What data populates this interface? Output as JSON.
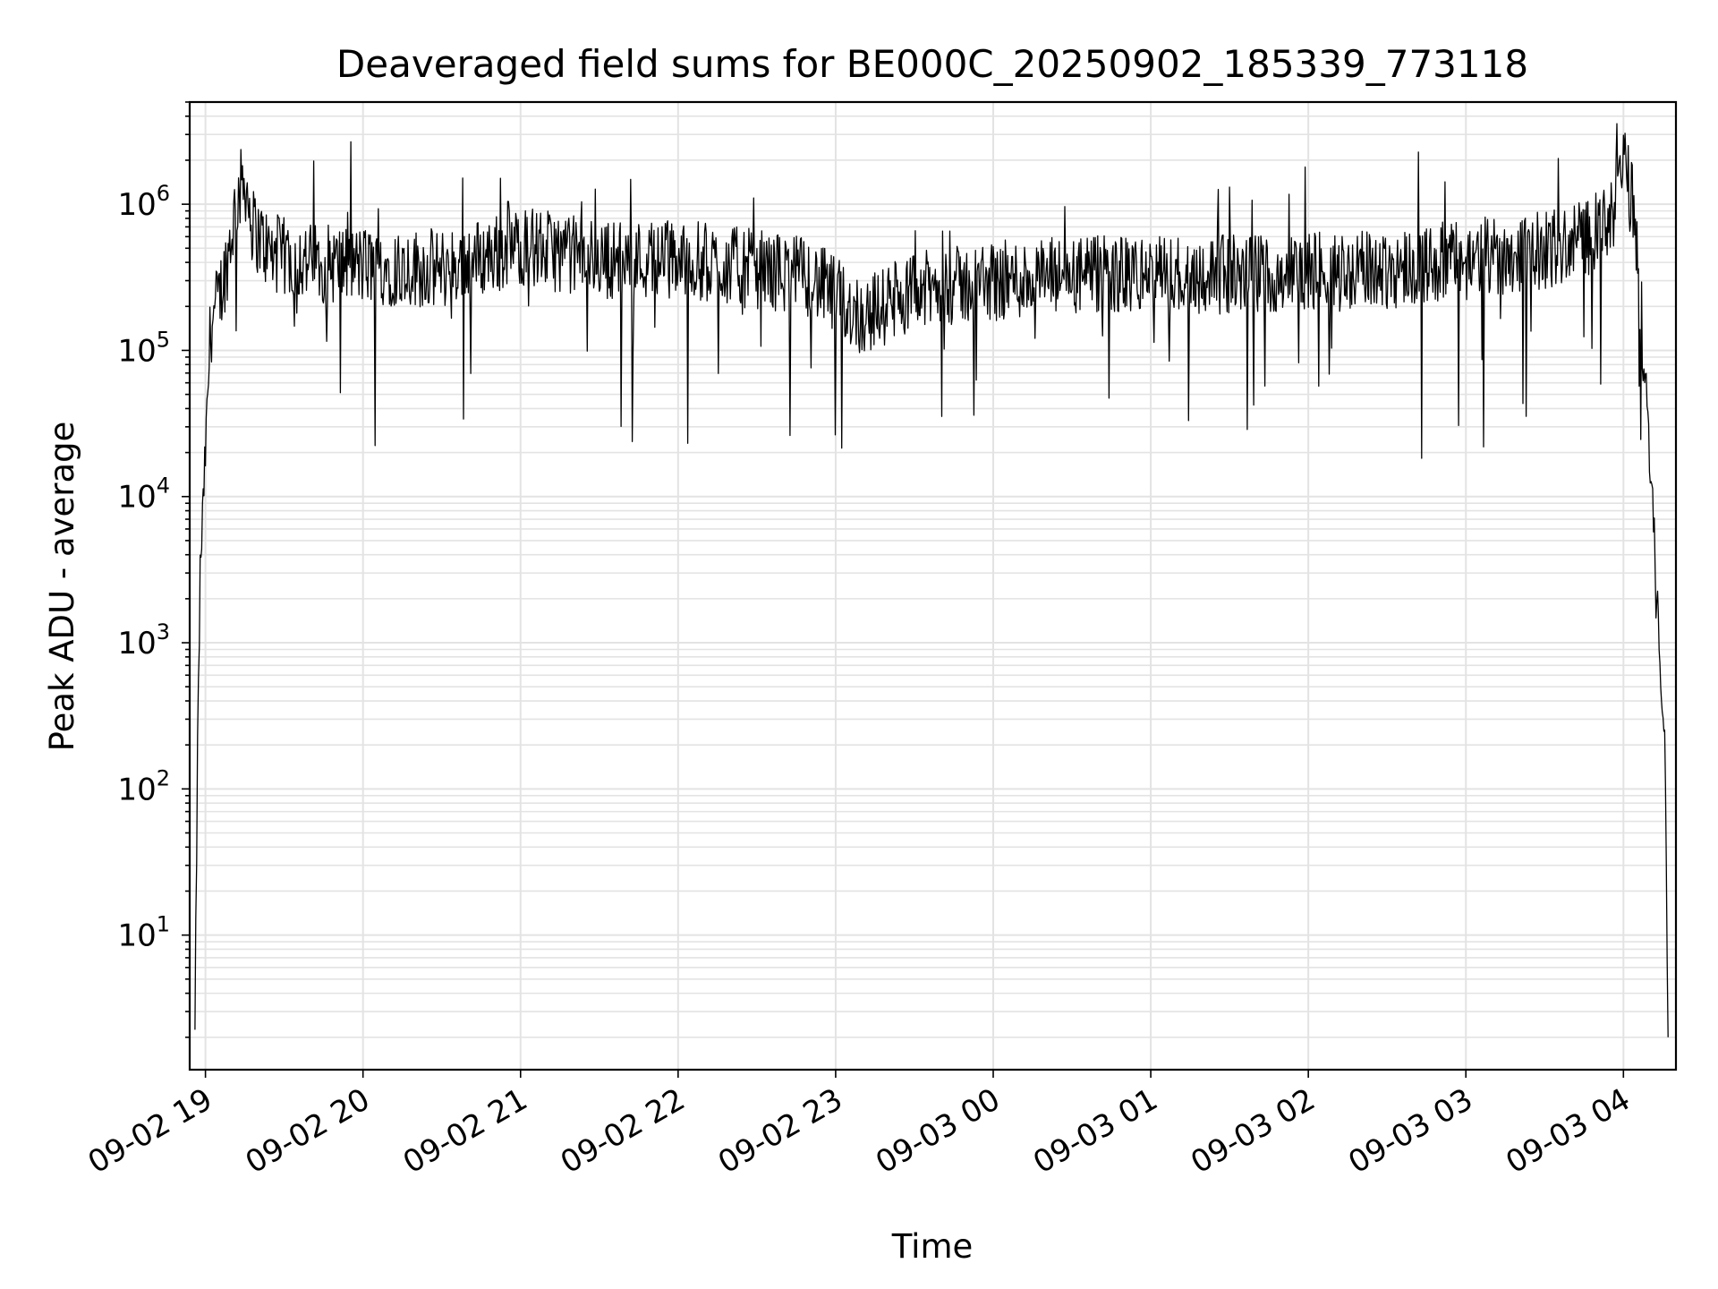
{
  "chart_data": {
    "type": "line",
    "title": "Deaveraged field sums for BE000C_20250902_185339_773118",
    "xlabel": "Time",
    "ylabel": "Peak ADU - average",
    "yscale": "log",
    "ylim": [
      1.2,
      5000000
    ],
    "xlim": [
      "2025-09-02 18:54",
      "2025-09-03 04:20"
    ],
    "grid": true,
    "x_ticks": [
      {
        "label": "09-02 19",
        "time": "2025-09-02 19:00"
      },
      {
        "label": "09-02 20",
        "time": "2025-09-02 20:00"
      },
      {
        "label": "09-02 21",
        "time": "2025-09-02 21:00"
      },
      {
        "label": "09-02 22",
        "time": "2025-09-02 22:00"
      },
      {
        "label": "09-02 23",
        "time": "2025-09-02 23:00"
      },
      {
        "label": "09-03 00",
        "time": "2025-09-03 00:00"
      },
      {
        "label": "09-03 01",
        "time": "2025-09-03 01:00"
      },
      {
        "label": "09-03 02",
        "time": "2025-09-03 02:00"
      },
      {
        "label": "09-03 03",
        "time": "2025-09-03 03:00"
      },
      {
        "label": "09-03 04",
        "time": "2025-09-03 04:00"
      }
    ],
    "y_ticks": [
      {
        "base": "10",
        "exp": "1",
        "value": 10
      },
      {
        "base": "10",
        "exp": "2",
        "value": 100
      },
      {
        "base": "10",
        "exp": "3",
        "value": 1000
      },
      {
        "base": "10",
        "exp": "4",
        "value": 10000
      },
      {
        "base": "10",
        "exp": "5",
        "value": 100000
      },
      {
        "base": "10",
        "exp": "6",
        "value": 1000000
      }
    ],
    "series": [
      {
        "color": "#000000",
        "points": [
          {
            "time": "2025-09-02 18:56",
            "value": 2
          },
          {
            "time": "2025-09-02 18:57",
            "value": 180
          },
          {
            "time": "2025-09-02 18:58",
            "value": 3000
          },
          {
            "time": "2025-09-02 19:00",
            "value": 20000
          },
          {
            "time": "2025-09-02 19:02",
            "value": 150000
          },
          {
            "time": "2025-09-02 19:05",
            "value": 220000
          },
          {
            "time": "2025-09-02 19:08",
            "value": 380000
          },
          {
            "time": "2025-09-02 19:12",
            "value": 1100000
          },
          {
            "time": "2025-09-02 19:15",
            "value": 1500000
          },
          {
            "time": "2025-09-02 19:18",
            "value": 700000
          },
          {
            "time": "2025-09-02 19:25",
            "value": 450000
          },
          {
            "time": "2025-09-02 19:40",
            "value": 400000
          },
          {
            "time": "2025-09-02 20:00",
            "value": 380000
          },
          {
            "time": "2025-09-02 20:30",
            "value": 360000
          },
          {
            "time": "2025-09-02 21:00",
            "value": 520000
          },
          {
            "time": "2025-09-02 21:30",
            "value": 420000
          },
          {
            "time": "2025-09-02 22:00",
            "value": 420000
          },
          {
            "time": "2025-09-02 22:30",
            "value": 360000
          },
          {
            "time": "2025-09-02 22:50",
            "value": 320000
          },
          {
            "time": "2025-09-02 23:10",
            "value": 170000
          },
          {
            "time": "2025-09-02 23:30",
            "value": 250000
          },
          {
            "time": "2025-09-03 00:00",
            "value": 300000
          },
          {
            "time": "2025-09-03 00:30",
            "value": 320000
          },
          {
            "time": "2025-09-03 01:00",
            "value": 330000
          },
          {
            "time": "2025-09-03 01:30",
            "value": 330000
          },
          {
            "time": "2025-09-03 02:00",
            "value": 340000
          },
          {
            "time": "2025-09-03 02:30",
            "value": 360000
          },
          {
            "time": "2025-09-03 03:00",
            "value": 420000
          },
          {
            "time": "2025-09-03 03:30",
            "value": 480000
          },
          {
            "time": "2025-09-03 03:55",
            "value": 700000
          },
          {
            "time": "2025-09-03 04:00",
            "value": 2000000
          },
          {
            "time": "2025-09-03 04:04",
            "value": 900000
          },
          {
            "time": "2025-09-03 04:06",
            "value": 300000
          },
          {
            "time": "2025-09-03 04:09",
            "value": 40000
          },
          {
            "time": "2025-09-03 04:13",
            "value": 2000
          },
          {
            "time": "2025-09-03 04:16",
            "value": 150
          },
          {
            "time": "2025-09-03 04:17",
            "value": 2
          }
        ]
      }
    ]
  }
}
